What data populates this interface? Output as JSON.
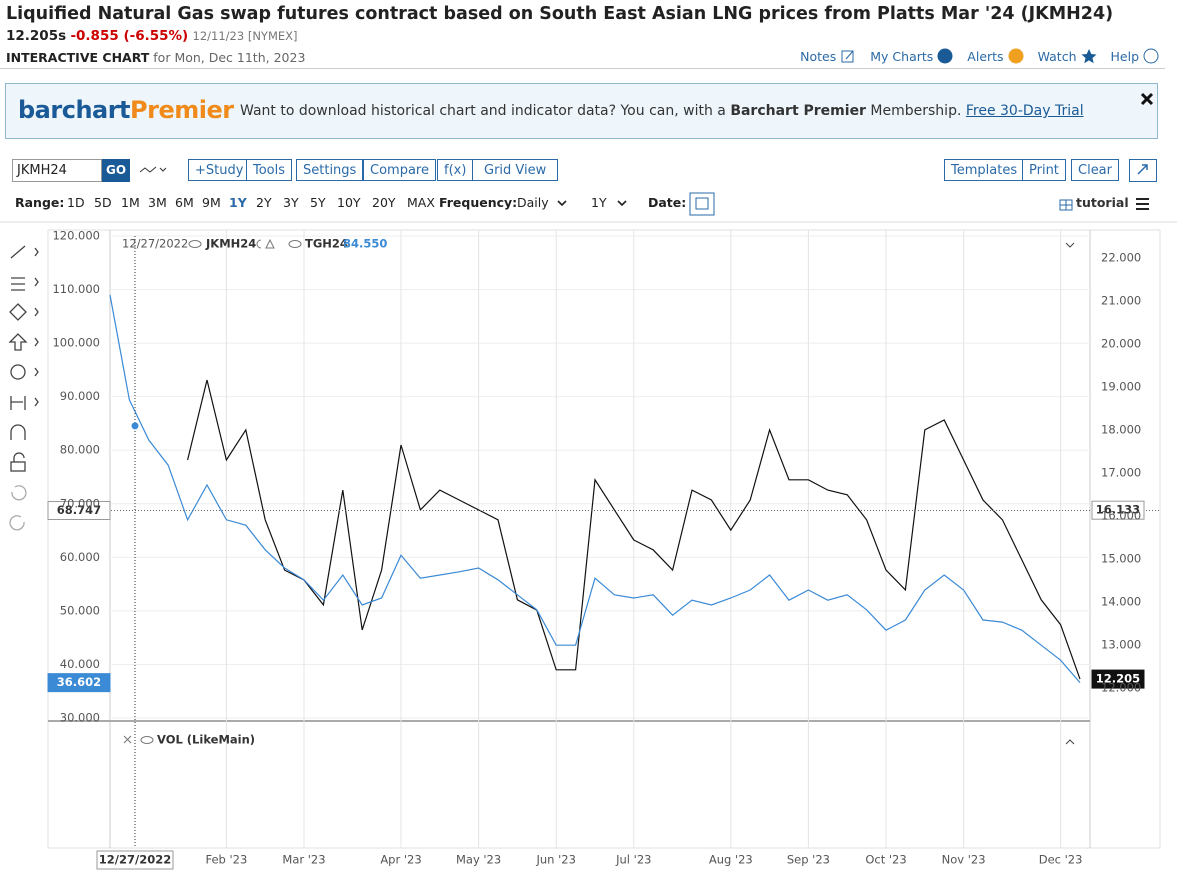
{
  "header": {
    "title": "Liquified Natural Gas swap futures contract based on South East Asian LNG prices from Platts Mar '24 (JKMH24)",
    "last": "12.205s",
    "change": "-0.855 (-6.55%)",
    "date_exchange": "12/11/23 [NYMEX]",
    "chart_label": "INTERACTIVE CHART",
    "chart_date": "for Mon, Dec 11th, 2023"
  },
  "nav": [
    "Notes",
    "My Charts",
    "Alerts",
    "Watch",
    "Help"
  ],
  "banner": {
    "logo_a": "barchart",
    "logo_b": "Premier",
    "text_a": "Want to download historical chart and indicator data? You can, with a",
    "text_bold": "Barchart Premier",
    "text_b": "Membership.",
    "link": "Free 30-Day Trial"
  },
  "toolbar": {
    "symbol": "JKMH24",
    "go": "GO",
    "buttons": [
      "+Study",
      "Tools",
      "Settings",
      "Compare",
      "f(x)",
      "Grid View"
    ],
    "right_buttons": [
      "Templates",
      "Print",
      "Clear"
    ]
  },
  "range": {
    "label": "Range:",
    "options": [
      "1D",
      "5D",
      "1M",
      "3M",
      "6M",
      "9M",
      "1Y",
      "2Y",
      "3Y",
      "5Y",
      "10Y",
      "20Y",
      "MAX"
    ],
    "selected": "1Y",
    "frequency_label": "Frequency:",
    "frequency": "Daily",
    "period": "1Y",
    "date_label": "Date:",
    "tutorial": "tutorial"
  },
  "chart_data": {
    "type": "line",
    "categories": [
      null,
      null,
      null,
      null,
      null,
      null,
      "Feb '23",
      null,
      null,
      null,
      "Mar '23",
      null,
      null,
      null,
      null,
      "Apr '23",
      null,
      null,
      null,
      "May '23",
      null,
      null,
      null,
      "Jun '23",
      null,
      null,
      null,
      "Jul '23",
      null,
      null,
      null,
      null,
      "Aug '23",
      null,
      null,
      null,
      "Sep '23",
      null,
      null,
      null,
      "Oct '23",
      null,
      null,
      null,
      "Nov '23",
      null,
      null,
      null,
      null,
      "Dec '23",
      null
    ],
    "series": [
      {
        "name": "JKMH24",
        "color": "#111111",
        "axis": "y2",
        "values": [
          null,
          null,
          null,
          null,
          17.3,
          19.16,
          17.3,
          18.0,
          15.91,
          14.74,
          14.51,
          13.93,
          16.6,
          13.35,
          14.74,
          17.65,
          16.14,
          16.6,
          16.37,
          16.14,
          15.91,
          14.05,
          13.81,
          12.42,
          12.42,
          16.84,
          16.14,
          15.44,
          15.21,
          14.74,
          16.6,
          16.37,
          15.67,
          16.37,
          18.0,
          16.84,
          16.84,
          16.6,
          16.49,
          15.91,
          14.74,
          14.28,
          18.0,
          18.23,
          17.3,
          16.37,
          15.91,
          14.98,
          14.05,
          13.47,
          12.205
        ]
      },
      {
        "name": "TGH24",
        "color": "#3b8ad6",
        "axis": "y",
        "values": [
          109.0,
          89.4,
          81.9,
          77.2,
          67.0,
          73.5,
          67.0,
          66.0,
          61.4,
          58.0,
          55.8,
          52.0,
          56.7,
          51.1,
          52.4,
          60.4,
          56.1,
          56.7,
          57.3,
          58.0,
          55.8,
          53.0,
          50.2,
          43.6,
          43.6,
          56.1,
          53.0,
          52.4,
          53.0,
          49.2,
          52.0,
          51.1,
          52.4,
          53.9,
          56.7,
          52.0,
          53.9,
          52.0,
          53.0,
          50.2,
          46.4,
          48.3,
          53.9,
          56.7,
          53.9,
          48.3,
          47.9,
          46.4,
          43.6,
          40.8,
          36.602
        ]
      }
    ],
    "ylim": [
      30,
      120
    ],
    "yticks": [
      {
        "value": 30,
        "label": "30.000"
      },
      {
        "value": 40,
        "label": "40.000"
      },
      {
        "value": 50,
        "label": "50.000"
      },
      {
        "value": 60,
        "label": "60.000"
      },
      {
        "value": 70,
        "label": "70.000"
      },
      {
        "value": 80,
        "label": "80.000"
      },
      {
        "value": 90,
        "label": "90.000"
      },
      {
        "value": 100,
        "label": "100.000"
      },
      {
        "value": 110,
        "label": "110.000"
      },
      {
        "value": 120,
        "label": "120.000"
      }
    ],
    "y2lim": [
      11.3,
      22.51
    ],
    "y2ticks": [
      {
        "value": 12,
        "label": "12.000"
      },
      {
        "value": 13,
        "label": "13.000"
      },
      {
        "value": 14,
        "label": "14.000"
      },
      {
        "value": 15,
        "label": "15.000"
      },
      {
        "value": 16,
        "label": "16.000"
      },
      {
        "value": 17,
        "label": "17.000"
      },
      {
        "value": 18,
        "label": "18.000"
      },
      {
        "value": 19,
        "label": "19.000"
      },
      {
        "value": 20,
        "label": "20.000"
      },
      {
        "value": 21,
        "label": "21.000"
      },
      {
        "value": 22,
        "label": "22.000"
      }
    ],
    "grid": true,
    "crosshair": {
      "date": "12/27/2022",
      "y": 68.747,
      "y2": 16.133,
      "tgh_value": {
        "value": 84.55,
        "label": "84.550"
      }
    },
    "volume_label": "VOL (LikeMain)"
  }
}
